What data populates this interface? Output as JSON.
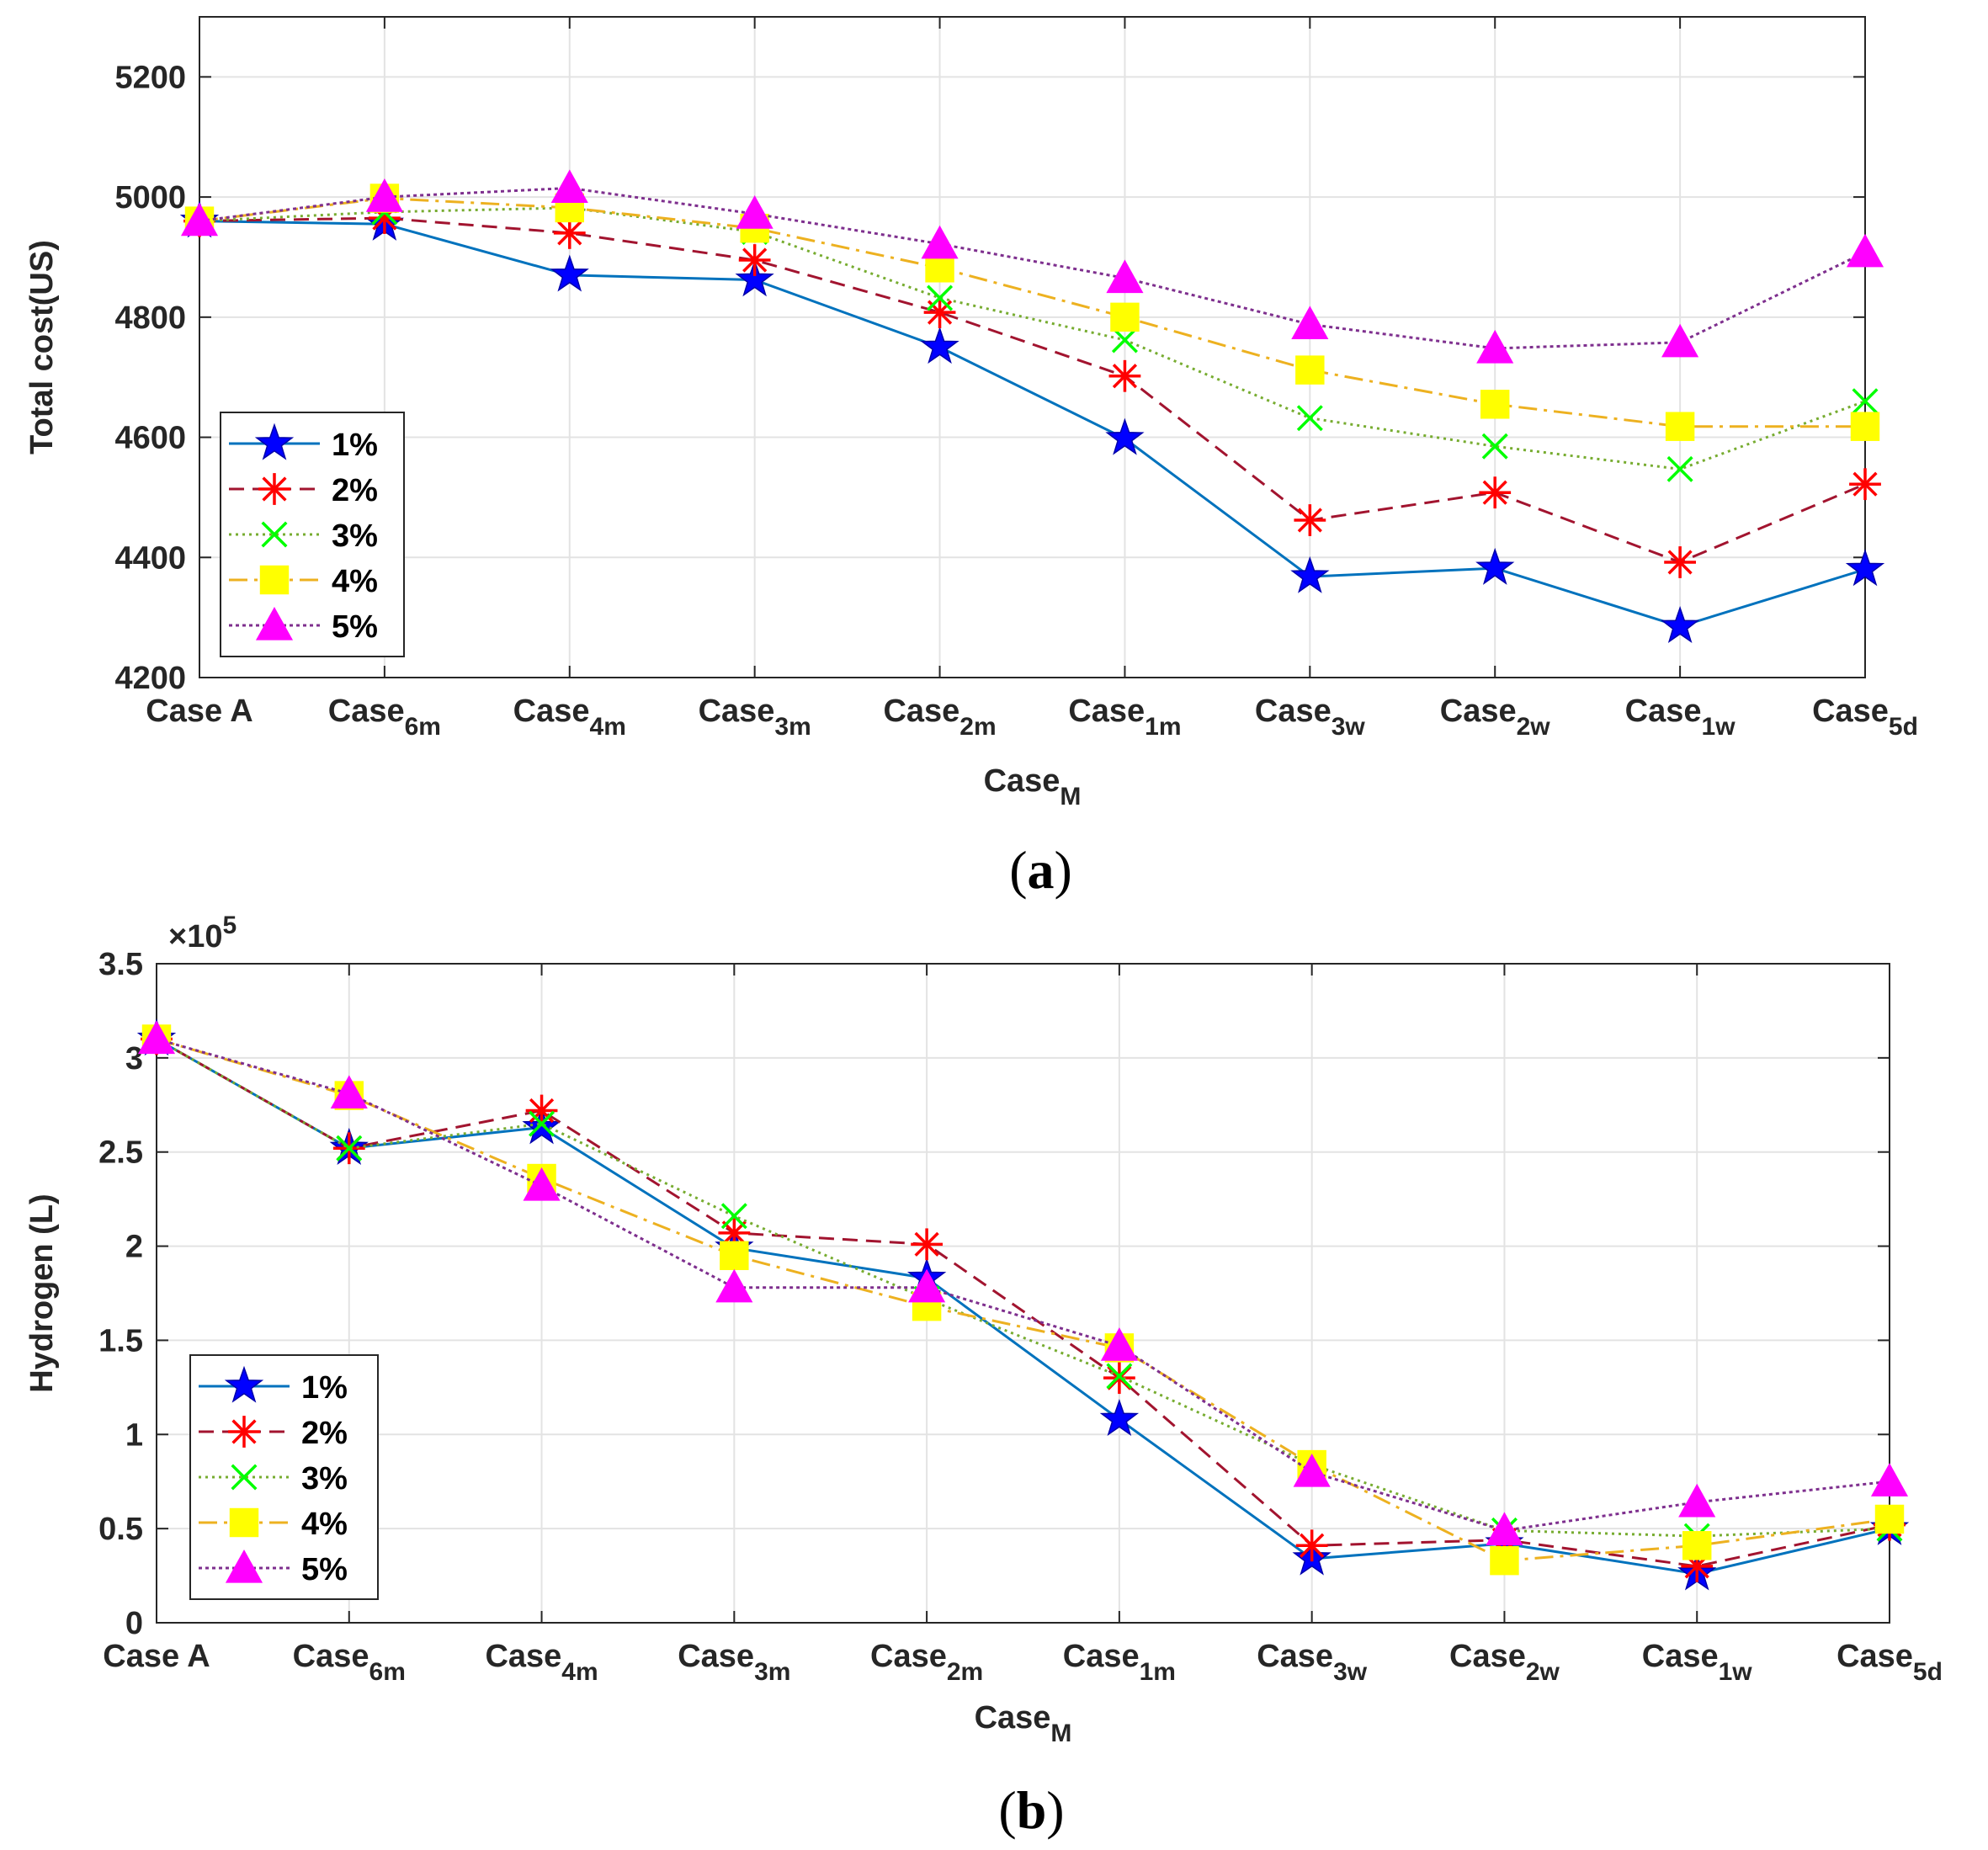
{
  "series_styles": [
    {
      "name": "1%",
      "line": "#0072BD",
      "dash": "",
      "marker": "star",
      "markerColor": "#0000FF"
    },
    {
      "name": "2%",
      "line": "#A2142F",
      "dash": "18,10",
      "marker": "asterisk",
      "markerColor": "#FF0000"
    },
    {
      "name": "3%",
      "line": "#77AC30",
      "dash": "3,5",
      "marker": "x",
      "markerColor": "#00FF00"
    },
    {
      "name": "4%",
      "line": "#EDB120",
      "dash": "22,8,4,8",
      "marker": "square",
      "markerColor": "#FFFF00"
    },
    {
      "name": "5%",
      "line": "#7E2F8E",
      "dash": "4,4",
      "marker": "triangle",
      "markerColor": "#FF00FF"
    }
  ],
  "chart_data": [
    {
      "type": "line",
      "panel_label": "(a)",
      "title": "",
      "categories": [
        {
          "base": "Case A",
          "sub": ""
        },
        {
          "base": "Case",
          "sub": "6m"
        },
        {
          "base": "Case",
          "sub": "4m"
        },
        {
          "base": "Case",
          "sub": "3m"
        },
        {
          "base": "Case",
          "sub": "2m"
        },
        {
          "base": "Case",
          "sub": "1m"
        },
        {
          "base": "Case",
          "sub": "3w"
        },
        {
          "base": "Case",
          "sub": "2w"
        },
        {
          "base": "Case",
          "sub": "1w"
        },
        {
          "base": "Case",
          "sub": "5d"
        }
      ],
      "xlabel": {
        "base": "Case",
        "sub": "M"
      },
      "ylabel": "Total cost(US)",
      "ylim": [
        4200,
        5300
      ],
      "yticks": [
        4200,
        4400,
        4600,
        4800,
        5000,
        5200
      ],
      "ytick_labels": [
        "4200",
        "4400",
        "4600",
        "4800",
        "5000",
        "5200"
      ],
      "exponent_label": "",
      "grid": true,
      "legend_position": "lower-left",
      "series": [
        {
          "name": "1%",
          "values": [
            4960,
            4955,
            4870,
            4862,
            4750,
            4598,
            4368,
            4382,
            4285,
            4380
          ]
        },
        {
          "name": "2%",
          "values": [
            4960,
            4965,
            4940,
            4895,
            4808,
            4702,
            4462,
            4508,
            4392,
            4522
          ]
        },
        {
          "name": "3%",
          "values": [
            4960,
            4975,
            4982,
            4942,
            4832,
            4762,
            4632,
            4585,
            4547,
            4660
          ]
        },
        {
          "name": "4%",
          "values": [
            4960,
            4998,
            4982,
            4948,
            4882,
            4800,
            4712,
            4655,
            4618,
            4618
          ]
        },
        {
          "name": "5%",
          "values": [
            4960,
            5000,
            5015,
            4972,
            4922,
            4865,
            4788,
            4748,
            4758,
            4908
          ]
        }
      ]
    },
    {
      "type": "line",
      "panel_label": "(b)",
      "title": "",
      "categories": [
        {
          "base": "Case A",
          "sub": ""
        },
        {
          "base": "Case",
          "sub": "6m"
        },
        {
          "base": "Case",
          "sub": "4m"
        },
        {
          "base": "Case",
          "sub": "3m"
        },
        {
          "base": "Case",
          "sub": "2m"
        },
        {
          "base": "Case",
          "sub": "1m"
        },
        {
          "base": "Case",
          "sub": "3w"
        },
        {
          "base": "Case",
          "sub": "2w"
        },
        {
          "base": "Case",
          "sub": "1w"
        },
        {
          "base": "Case",
          "sub": "5d"
        }
      ],
      "xlabel": {
        "base": "Case",
        "sub": "M"
      },
      "ylabel": "Hydrogen (L)",
      "ylim": [
        0,
        3.5
      ],
      "yticks": [
        0,
        0.5,
        1,
        1.5,
        2,
        2.5,
        3,
        3.5
      ],
      "ytick_labels": [
        "0",
        "0.5",
        "1",
        "1.5",
        "2",
        "2.5",
        "3",
        "3.5"
      ],
      "exponent_label": {
        "base": "×10",
        "sup": "5"
      },
      "grid": true,
      "legend_position": "lower-left",
      "series": [
        {
          "name": "1%",
          "values": [
            3.1,
            2.52,
            2.63,
            1.99,
            1.83,
            1.08,
            0.34,
            0.42,
            0.26,
            0.5
          ]
        },
        {
          "name": "2%",
          "values": [
            3.1,
            2.52,
            2.72,
            2.07,
            2.01,
            1.3,
            0.41,
            0.44,
            0.3,
            0.52
          ]
        },
        {
          "name": "3%",
          "values": [
            3.1,
            2.52,
            2.65,
            2.16,
            1.72,
            1.31,
            0.84,
            0.49,
            0.46,
            0.5
          ]
        },
        {
          "name": "4%",
          "values": [
            3.1,
            2.8,
            2.36,
            1.95,
            1.68,
            1.46,
            0.84,
            0.33,
            0.41,
            0.55
          ]
        },
        {
          "name": "5%",
          "values": [
            3.1,
            2.81,
            2.32,
            1.78,
            1.78,
            1.47,
            0.8,
            0.49,
            0.64,
            0.75
          ]
        }
      ]
    }
  ]
}
